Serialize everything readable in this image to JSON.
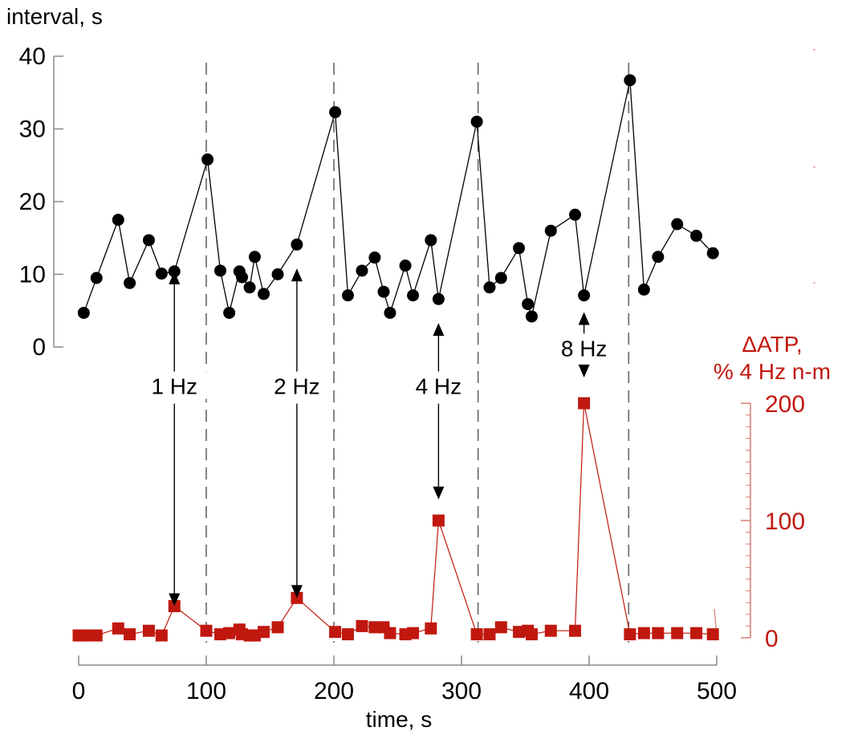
{
  "chart_data": {
    "type": "line",
    "y_left": {
      "label": "interval, s",
      "ylim": [
        0,
        40
      ],
      "ticks": [
        "0",
        "10",
        "20",
        "30",
        "40"
      ]
    },
    "y_right": {
      "label_line1": "ΔATP,",
      "label_line2": "% 4 Hz n-m",
      "ylim": [
        0,
        200
      ],
      "ticks": [
        "0",
        "100",
        "200"
      ]
    },
    "x_axis": {
      "label": "time, s",
      "xlim": [
        0,
        500
      ],
      "ticks": [
        "0",
        "100",
        "200",
        "300",
        "400",
        "500"
      ]
    },
    "dashed_lines_x": [
      100,
      200,
      313,
      431
    ],
    "series": [
      {
        "role": "interval",
        "color": "#000000",
        "marker": "circle",
        "points": [
          [
            4,
            4.7
          ],
          [
            14,
            9.5
          ],
          [
            31,
            17.5
          ],
          [
            40,
            8.8
          ],
          [
            55,
            14.7
          ],
          [
            65,
            10.1
          ],
          [
            75,
            10.4
          ],
          [
            101,
            25.8
          ],
          [
            111,
            10.5
          ],
          [
            118,
            4.7
          ],
          [
            126,
            10.4
          ],
          [
            128,
            9.6
          ],
          [
            134,
            8.2
          ],
          [
            138,
            12.4
          ],
          [
            145,
            7.3
          ],
          [
            156,
            10.0
          ],
          [
            171,
            14.1
          ],
          [
            201,
            32.3
          ],
          [
            211,
            7.1
          ],
          [
            222,
            10.5
          ],
          [
            232,
            12.3
          ],
          [
            239,
            7.6
          ],
          [
            244,
            4.7
          ],
          [
            256,
            11.2
          ],
          [
            262,
            7.1
          ],
          [
            276,
            14.7
          ],
          [
            282,
            6.6
          ],
          [
            312,
            31.0
          ],
          [
            322,
            8.2
          ],
          [
            331,
            9.5
          ],
          [
            345,
            13.6
          ],
          [
            352,
            5.9
          ],
          [
            355,
            4.2
          ],
          [
            370,
            16.0
          ],
          [
            389,
            18.2
          ],
          [
            396,
            7.1
          ],
          [
            432,
            36.7
          ],
          [
            443,
            7.9
          ],
          [
            454,
            12.4
          ],
          [
            469,
            16.9
          ],
          [
            484,
            15.3
          ],
          [
            497,
            12.9
          ]
        ]
      },
      {
        "role": "atp",
        "color": "#c0180f",
        "marker": "square",
        "points": [
          [
            0,
            2
          ],
          [
            6,
            2
          ],
          [
            14,
            2
          ],
          [
            31,
            8
          ],
          [
            40,
            3
          ],
          [
            55,
            6
          ],
          [
            65,
            2
          ],
          [
            75,
            27
          ],
          [
            100,
            6
          ],
          [
            111,
            3
          ],
          [
            118,
            4
          ],
          [
            126,
            7
          ],
          [
            128,
            3
          ],
          [
            134,
            2
          ],
          [
            138,
            2
          ],
          [
            145,
            5
          ],
          [
            156,
            9
          ],
          [
            171,
            34
          ],
          [
            201,
            5
          ],
          [
            211,
            3
          ],
          [
            222,
            10
          ],
          [
            232,
            9
          ],
          [
            239,
            9
          ],
          [
            244,
            4
          ],
          [
            256,
            3
          ],
          [
            262,
            4
          ],
          [
            276,
            8
          ],
          [
            282,
            100
          ],
          [
            312,
            3
          ],
          [
            322,
            3
          ],
          [
            331,
            9
          ],
          [
            345,
            5
          ],
          [
            352,
            6
          ],
          [
            355,
            3
          ],
          [
            370,
            6
          ],
          [
            389,
            6
          ],
          [
            396,
            200
          ],
          [
            432,
            3
          ],
          [
            443,
            4
          ],
          [
            454,
            4
          ],
          [
            469,
            4
          ],
          [
            484,
            4
          ],
          [
            497,
            3
          ]
        ]
      }
    ],
    "annotations": [
      {
        "text": "1 Hz",
        "x": 75,
        "from_interval": 10.4,
        "to_atp": 27,
        "label_x": 75,
        "label_interval": -5.8
      },
      {
        "text": "2 Hz",
        "x": 171,
        "from_interval": 10.8,
        "to_atp": 34,
        "label_x": 171,
        "label_interval": -5.8
      },
      {
        "text": "4 Hz",
        "x": 282,
        "from_interval": 3.3,
        "to_atp": 118,
        "label_x": 282,
        "label_interval": -5.8
      },
      {
        "text": "8 Hz",
        "x": 396,
        "from_interval": 4.8,
        "to_atp": 222,
        "label_x": 396,
        "label_interval": -0.6
      }
    ]
  }
}
